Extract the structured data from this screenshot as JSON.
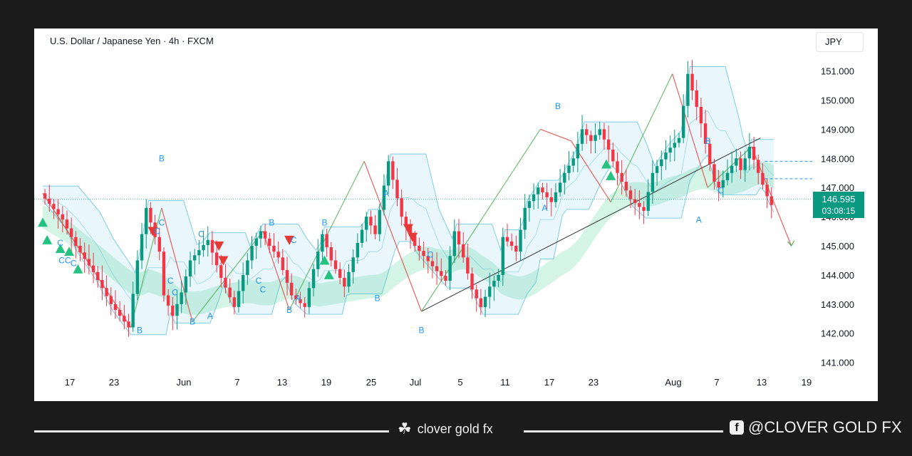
{
  "header": {
    "title": "U.S. Dollar / Japanese Yen · 4h · FXCM",
    "currency": "JPY"
  },
  "price_tag": {
    "price": "146.595",
    "countdown": "03:08:15"
  },
  "footer": {
    "brand": "clover gold fx",
    "social": "@CLOVER GOLD FX"
  },
  "colors": {
    "up": "#089981",
    "down": "#f23645",
    "wave_label": "#2196f3",
    "buy_marker": "#26c281",
    "sell_marker": "#e53935"
  },
  "icons": {
    "brand": "clover-icon",
    "social": "facebook-icon"
  },
  "chart_data": {
    "type": "line",
    "title": "U.S. Dollar / Japanese Yen · 4h · FXCM",
    "x_ticks": [
      "17",
      "23",
      "Jun",
      "7",
      "13",
      "19",
      "25",
      "Jul",
      "5",
      "11",
      "17",
      "23",
      "Aug",
      "7",
      "13",
      "19"
    ],
    "y_ticks": [
      "151.000",
      "150.000",
      "149.000",
      "148.000",
      "147.000",
      "146.000",
      "145.000",
      "144.000",
      "143.000",
      "142.000",
      "141.000"
    ],
    "ylim": [
      140.6,
      152.2
    ],
    "grid": false,
    "last_price": 146.595,
    "series": [
      {
        "x": [
          0,
          5,
          8,
          12,
          16,
          20,
          22,
          24,
          27,
          28,
          30,
          32,
          34,
          38,
          41,
          44,
          46,
          48,
          50,
          52,
          54,
          57,
          60,
          62,
          64,
          66,
          69,
          72,
          74,
          76,
          79,
          82,
          85,
          89,
          92,
          94,
          96,
          98,
          100,
          102,
          104,
          105,
          107,
          108,
          110,
          113,
          116,
          119,
          121,
          123,
          125,
          127,
          129,
          131,
          134,
          137,
          139,
          142,
          145,
          147,
          150,
          152,
          153,
          154,
          156,
          158,
          159,
          161
        ],
        "y": [
          146.8,
          145.9,
          145.0,
          144.1,
          143.0,
          142.2,
          144.5,
          146.3,
          144.8,
          143.3,
          142.6,
          143.4,
          144.5,
          145.2,
          143.9,
          142.9,
          144.0,
          145.0,
          145.5,
          145.0,
          144.6,
          143.3,
          142.9,
          144.2,
          145.4,
          144.5,
          143.6,
          145.1,
          146.0,
          145.4,
          147.9,
          146.0,
          145.0,
          144.3,
          143.8,
          145.5,
          144.6,
          143.5,
          142.9,
          143.6,
          144.0,
          145.3,
          145.0,
          144.8,
          146.3,
          147.0,
          146.5,
          147.5,
          148.0,
          149.0,
          148.6,
          149.0,
          148.3,
          147.5,
          146.6,
          146.2,
          147.5,
          148.2,
          148.7,
          150.9,
          149.2,
          147.8,
          147.2,
          147.0,
          147.5,
          148.0,
          147.6,
          148.4
        ]
      },
      {
        "x": [
          161,
          163,
          165,
          166
        ],
        "y": [
          148.4,
          147.5,
          146.7,
          146.4
        ]
      }
    ],
    "wave_labels": [
      {
        "text": "B",
        "x": 27,
        "y": 147.9
      },
      {
        "text": "C",
        "x": 27,
        "y": 145.7
      },
      {
        "text": "C",
        "x": 26,
        "y": 145.4
      },
      {
        "text": "C",
        "x": 4,
        "y": 145.0
      },
      {
        "text": "CC",
        "x": 5,
        "y": 144.4
      },
      {
        "text": "C",
        "x": 7,
        "y": 144.3
      },
      {
        "text": "C",
        "x": 29,
        "y": 143.7
      },
      {
        "text": "C",
        "x": 30,
        "y": 143.3
      },
      {
        "text": "B",
        "x": 22,
        "y": 142.0
      },
      {
        "text": "B",
        "x": 34,
        "y": 142.3
      },
      {
        "text": "A",
        "x": 38,
        "y": 142.5
      },
      {
        "text": "C",
        "x": 36,
        "y": 145.3
      },
      {
        "text": "B",
        "x": 52,
        "y": 145.7
      },
      {
        "text": "C",
        "x": 49,
        "y": 143.7
      },
      {
        "text": "C",
        "x": 50,
        "y": 143.4
      },
      {
        "text": "B",
        "x": 56,
        "y": 142.7
      },
      {
        "text": "B",
        "x": 64,
        "y": 145.7
      },
      {
        "text": "C",
        "x": 57,
        "y": 145.1
      },
      {
        "text": "A",
        "x": 58,
        "y": 143.1
      },
      {
        "text": "B",
        "x": 76,
        "y": 143.1
      },
      {
        "text": "A",
        "x": 78,
        "y": 146.7
      },
      {
        "text": "C",
        "x": 88,
        "y": 144.6
      },
      {
        "text": "B",
        "x": 86,
        "y": 142.0
      },
      {
        "text": "B",
        "x": 117,
        "y": 149.7
      },
      {
        "text": "A",
        "x": 114,
        "y": 146.2
      },
      {
        "text": "B",
        "x": 151,
        "y": 148.5
      },
      {
        "text": "A",
        "x": 149,
        "y": 145.8
      },
      {
        "text": "C",
        "x": 154,
        "y": 146.8
      }
    ]
  }
}
